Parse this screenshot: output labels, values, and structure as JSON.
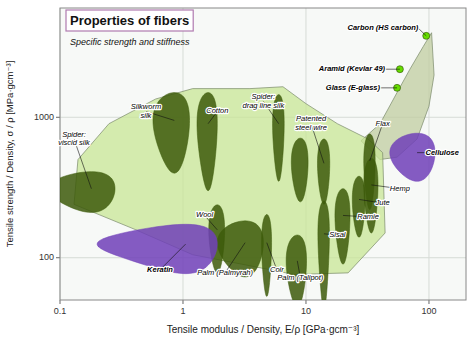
{
  "chart_data": {
    "type": "scatter",
    "title": "Properties of fibers",
    "subtitle": "Specific strength and stiffness",
    "x_label": "Tensile modulus / Density, E/ρ [GPa·gcm⁻³]",
    "y_label": "Tensile strength / Density, σ / ρ [MPa·gcm⁻³]",
    "log": true,
    "grid": true,
    "xlim": [
      0.1,
      200
    ],
    "ylim": [
      50,
      6000
    ],
    "xticks": [
      0.1,
      1,
      10,
      100
    ],
    "yticks": [
      100,
      1000
    ],
    "series": [
      {
        "type": "area",
        "color": "#c0cca0",
        "x": [
          28,
          40,
          55,
          70,
          90,
          105,
          110,
          100,
          80,
          55,
          40,
          28
        ],
        "values": [
          680,
          900,
          1500,
          2200,
          3200,
          4000,
          2000,
          1200,
          700,
          520,
          500,
          680
        ]
      },
      {
        "type": "area",
        "color": "#c8e696",
        "x": [
          0.13,
          0.14,
          0.25,
          0.6,
          1.2,
          3.5,
          6.5,
          10,
          18,
          32,
          42,
          44,
          22,
          8,
          3,
          1.2,
          0.4,
          0.13
        ],
        "values": [
          240,
          500,
          900,
          1350,
          1600,
          1600,
          1650,
          1250,
          900,
          700,
          560,
          150,
          78,
          76,
          90,
          105,
          160,
          240
        ]
      },
      {
        "type": "ellipse",
        "color": "#3d5a0a",
        "x": [
          0.18,
          0.85,
          1.6,
          6,
          9,
          14,
          33,
          34,
          27,
          20,
          14,
          4.8,
          3.2,
          8.5,
          1.9
        ],
        "values": [
          310,
          950,
          900,
          900,
          480,
          470,
          490,
          330,
          260,
          200,
          148,
          128,
          128,
          95,
          158
        ],
        "half_widths": [
          0.1,
          0.28,
          0.3,
          0.65,
          1.4,
          1.6,
          3.5,
          4.5,
          3.2,
          2.8,
          1.5,
          0.45,
          1.3,
          1.6,
          0.28
        ],
        "half_heights": [
          100,
          550,
          600,
          550,
          230,
          230,
          270,
          180,
          120,
          110,
          105,
          75,
          55,
          50,
          80
        ],
        "labels": [
          "Spider:\nviscid silk",
          "Silkworm\nsilk",
          "Cotton",
          "Spider:\ndrag line silk",
          null,
          "Patented\nsteel wire",
          "Flax",
          "Hemp",
          "Jute",
          "Ramie",
          "Sisal",
          "Coir",
          "Palm (Palmyrah)",
          "Palm (Talipot)",
          "Wool"
        ],
        "label_x": [
          0.13,
          0.5,
          1.9,
          4.5,
          null,
          11,
          42,
          58,
          42,
          32,
          18,
          5.8,
          2.2,
          9,
          1.5
        ],
        "label_y": [
          700,
          1100,
          1100,
          1300,
          null,
          900,
          900,
          310,
          245,
          195,
          145,
          82,
          78,
          72,
          200
        ]
      },
      {
        "type": "ellipse",
        "color": "#7040b8",
        "x": [
          1.05,
          80
        ],
        "values": [
          125,
          560
        ],
        "half_widths": [
          0.85,
          32
        ],
        "half_heights": [
          48,
          210
        ],
        "labels": [
          "Keratin",
          "Cellulose"
        ],
        "label_x": [
          0.65,
          128
        ],
        "label_y": [
          82,
          560
        ]
      },
      {
        "type": "scatter",
        "color": "#66dd00",
        "marker": "circle",
        "x": [
          58,
          55,
          95
        ],
        "values": [
          2200,
          1620,
          3800
        ],
        "labels": [
          "Aramid (Kevlar 49)",
          "Glass (E-glass)",
          "Carbon (HS carbon)"
        ],
        "label_x": [
          44,
          40,
          82
        ],
        "label_y": [
          2200,
          1620,
          4300
        ]
      }
    ]
  }
}
